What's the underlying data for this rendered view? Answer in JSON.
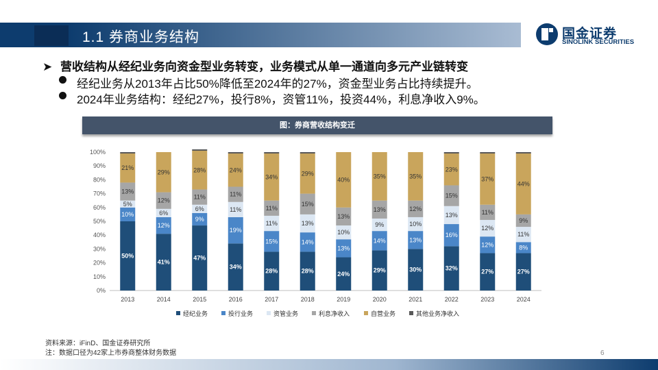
{
  "section_title": "1.1 券商业务结构",
  "logo": {
    "cn": "国金证券",
    "en": "SINOLINK SECURITIES"
  },
  "bullets": {
    "main": "营收结构从经纪业务向资金型业务转变，业务模式从单一通道向多元产业链转变",
    "sub1": "经纪业务从2013年占比50%降低至2024年的27%，资金型业务占比持续提升。",
    "sub2": "2024年业务结构：经纪27%，投行8%，资管11%，投资44%，利息净收入9%。"
  },
  "chart_header": "图：券商营收结构变迁",
  "chart_data": {
    "type": "bar",
    "stacked": true,
    "categories": [
      "2013",
      "2014",
      "2015",
      "2016",
      "2017",
      "2018",
      "2019",
      "2020",
      "2021",
      "2022",
      "2023",
      "2024"
    ],
    "yticks": [
      "0%",
      "10%",
      "20%",
      "30%",
      "40%",
      "50%",
      "60%",
      "70%",
      "80%",
      "90%",
      "100%"
    ],
    "ylim": [
      0,
      100
    ],
    "legend_position": "bottom",
    "series": [
      {
        "name": "经纪业务",
        "color": "#1f4e79",
        "values": [
          50,
          41,
          47,
          34,
          28,
          28,
          24,
          29,
          30,
          32,
          27,
          27
        ],
        "labels": [
          "50%",
          "41%",
          "47%",
          "34%",
          "28%",
          "28%",
          "24%",
          "29%",
          "30%",
          "32%",
          "27%",
          "27%"
        ]
      },
      {
        "name": "投行业务",
        "color": "#4a86c8",
        "values": [
          10,
          12,
          9,
          19,
          15,
          14,
          13,
          14,
          13,
          16,
          12,
          8
        ],
        "labels": [
          "10%",
          "12%",
          "9%",
          "19%",
          "15%",
          "14%",
          "13%",
          "14%",
          "13%",
          "16%",
          "12%",
          "8%"
        ]
      },
      {
        "name": "资管业务",
        "color": "#dce7f3",
        "values": [
          5,
          6,
          6,
          11,
          11,
          13,
          10,
          9,
          10,
          13,
          12,
          11
        ],
        "labels": [
          "5%",
          "6%",
          "6%",
          "11%",
          "11%",
          "13%",
          "10%",
          "9%",
          "10%",
          "13%",
          "12%",
          "11%"
        ]
      },
      {
        "name": "利息净收入",
        "color": "#a6a6a6",
        "values": [
          13,
          12,
          11,
          11,
          11,
          15,
          13,
          13,
          12,
          15,
          11,
          9
        ],
        "labels": [
          "13%",
          "12%",
          "11%",
          "11%",
          "11%",
          "15%",
          "13%",
          "13%",
          "12%",
          "15%",
          "11%",
          "9%"
        ]
      },
      {
        "name": "自营业务",
        "color": "#c9a55c",
        "values": [
          21,
          29,
          28,
          24,
          34,
          29,
          40,
          35,
          35,
          23,
          37,
          44
        ],
        "labels": [
          "21%",
          "29%",
          "28%",
          "24%",
          "34%",
          "29%",
          "40%",
          "35%",
          "35%",
          "23%",
          "37%",
          "44%"
        ]
      },
      {
        "name": "其他业务净收入",
        "color": "#595959",
        "values": [
          1,
          0,
          1,
          1,
          1,
          1,
          0,
          0,
          0,
          1,
          1,
          1
        ],
        "labels": [
          "",
          "",
          "",
          "",
          "",
          "",
          "",
          "",
          "",
          "",
          "",
          ""
        ]
      }
    ]
  },
  "footer": {
    "source": "资料来源：iFinD、国金证券研究所",
    "note": "注：数据口径为42家上市券商整体财务数据"
  },
  "page_number": "6"
}
